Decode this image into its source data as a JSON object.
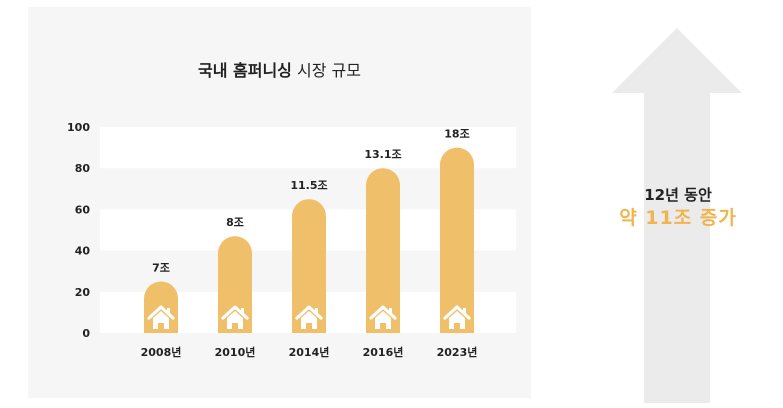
{
  "chart_data": {
    "type": "bar",
    "title_bold": "국내 홈퍼니싱",
    "title_rest": "시장 규모",
    "categories": [
      "2008년",
      "2010년",
      "2014년",
      "2016년",
      "2023년"
    ],
    "values": [
      7,
      8,
      11.5,
      13.1,
      18
    ],
    "value_labels": [
      "7조",
      "8조",
      "11.5조",
      "13.1조",
      "18조"
    ],
    "bar_heights": [
      25,
      47,
      65,
      80,
      90
    ],
    "y_ticks": [
      0,
      20,
      40,
      60,
      80,
      100
    ],
    "ylim": [
      0,
      100
    ],
    "bar_color": "#f0bf6a",
    "band_color": "#ffffff",
    "icon": "house-icon"
  },
  "callout": {
    "line1": "12년 동안",
    "line2": "약 11조 증가",
    "accent_color": "#f0b450",
    "arrow_color": "#ebebeb"
  }
}
